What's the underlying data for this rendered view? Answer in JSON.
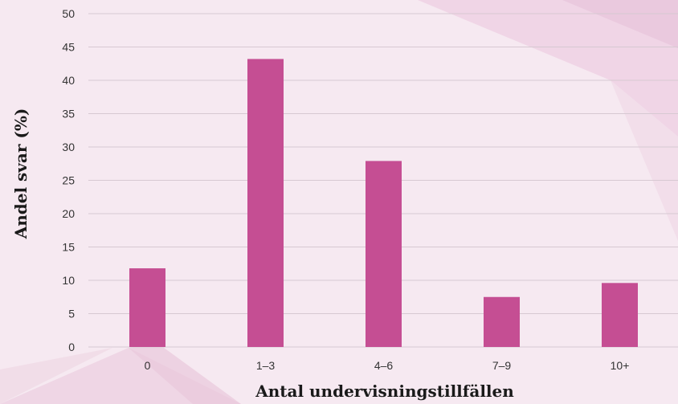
{
  "chart_data": {
    "type": "bar",
    "title": "",
    "xlabel": "Antal undervisningstillfällen",
    "ylabel": "Andel svar (%)",
    "categories": [
      "0",
      "1–3",
      "4–6",
      "7–9",
      "10+"
    ],
    "values": [
      11.8,
      43.2,
      27.9,
      7.5,
      9.6
    ],
    "ylim": [
      0,
      50
    ],
    "yticks": [
      0,
      5,
      10,
      15,
      20,
      25,
      30,
      35,
      40,
      45,
      50
    ],
    "grid": true,
    "legend": "none",
    "bar_color": "#c54e93"
  }
}
